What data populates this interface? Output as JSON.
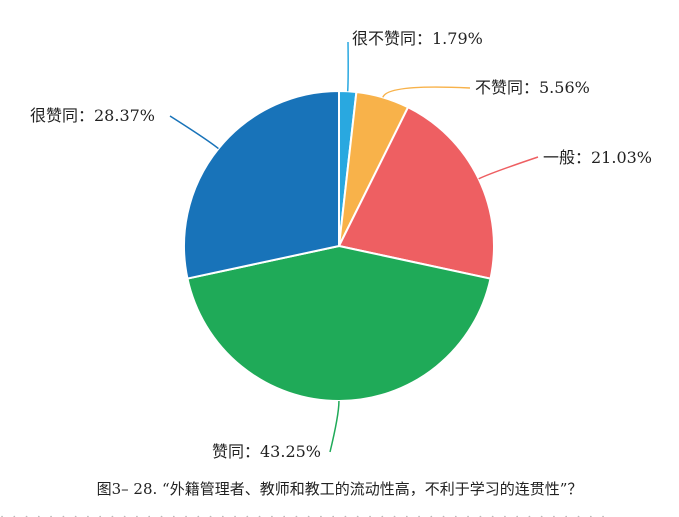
{
  "chart_data": {
    "type": "pie",
    "slices": [
      {
        "label": "很不赞同",
        "value": 1.79,
        "display": "很不赞同：1.79%",
        "color": "#29a8e0"
      },
      {
        "label": "不赞同",
        "value": 5.56,
        "display": "不赞同：5.56%",
        "color": "#f8b24a"
      },
      {
        "label": "一般",
        "value": 21.03,
        "display": "一般：21.03%",
        "color": "#ee5f62"
      },
      {
        "label": "赞同",
        "value": 43.25,
        "display": "赞同：43.25%",
        "color": "#1faa58"
      },
      {
        "label": "很赞同",
        "value": 28.37,
        "display": "很赞同：28.37%",
        "color": "#1873b9"
      }
    ]
  },
  "caption": "图3– 28. “外籍管理者、教师和教工的流动性高，不利于学习的连贯性”？"
}
